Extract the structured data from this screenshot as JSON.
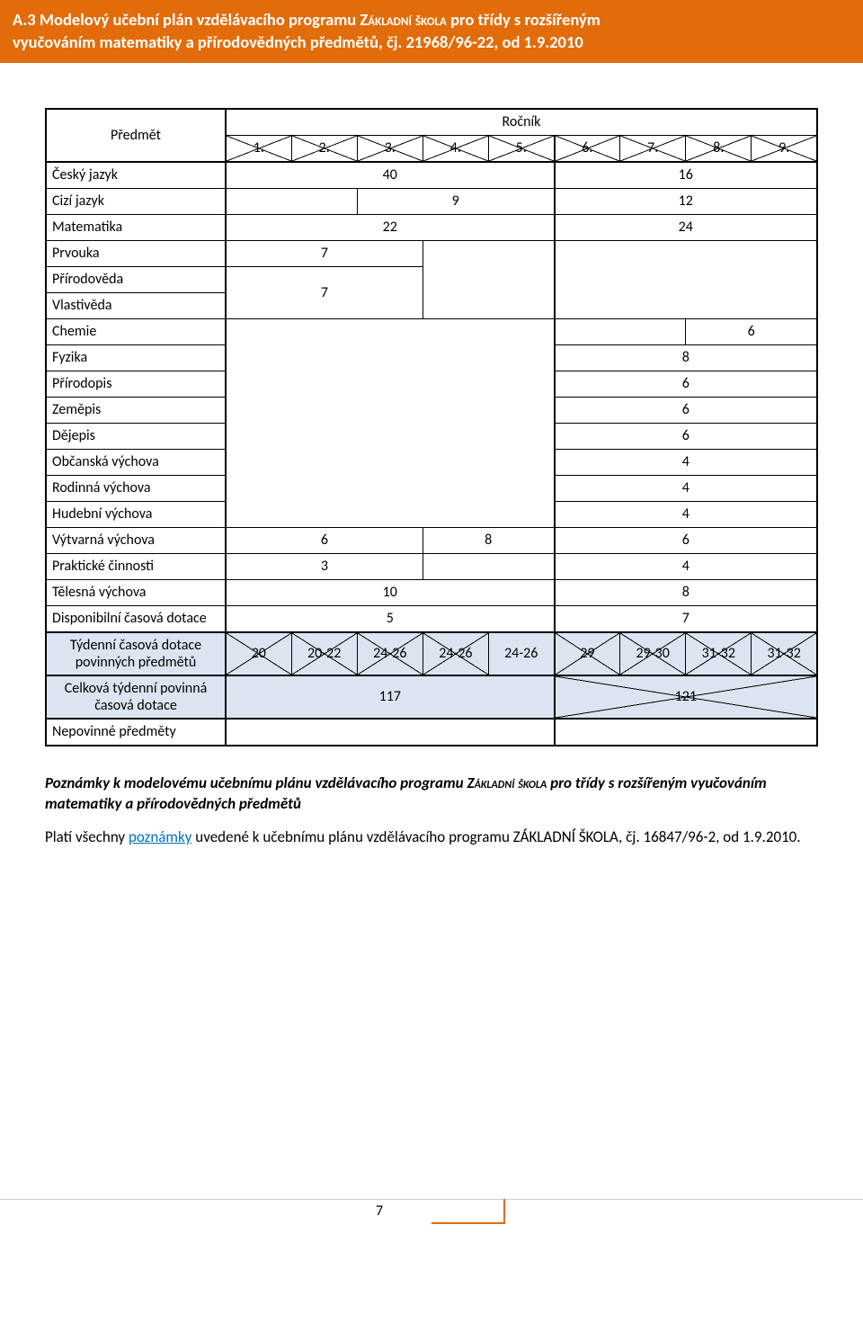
{
  "header": {
    "line1_prefix": "A.3 Modelový učební plán vzdělávacího programu ",
    "line1_caps": "Základní škola",
    "line1_suffix": " pro třídy s rozšířeným",
    "line2": "vyučováním matematiky a přírodovědných předmětů, čj. 21968/96-22, od 1.9.2010"
  },
  "table": {
    "colors": {
      "blue_bg": "#dbe5f1",
      "border": "#000000"
    },
    "subject_header": "Předmět",
    "year_header": "Ročník",
    "years": [
      "1.",
      "2.",
      "3.",
      "4.",
      "5.",
      "6.",
      "7.",
      "8.",
      "9."
    ],
    "rows": [
      {
        "subject": "Český jazyk",
        "a": "40",
        "b": "16",
        "a_span": 5,
        "b_span": 4
      },
      {
        "subject": "Cizí jazyk",
        "a": "",
        "b": "9",
        "c": "12",
        "a_span": 2,
        "b_span": 3,
        "c_span": 4
      },
      {
        "subject": "Matematika",
        "a": "22",
        "b": "24",
        "a_span": 5,
        "b_span": 4
      },
      {
        "subject": "Prvouka",
        "a": "7",
        "a_span": 3
      }
    ],
    "prirodoveda": "Přírodověda",
    "vlastiveda": "Vlastivěda",
    "prirodoveda_val": "7",
    "chemie": {
      "subject": "Chemie",
      "val": "6"
    },
    "fyzika": {
      "subject": "Fyzika",
      "val": "8"
    },
    "prirodopis": {
      "subject": "Přírodopis",
      "val": "6"
    },
    "zemepis": {
      "subject": "Zeměpis",
      "val": "6"
    },
    "dejepis": {
      "subject": "Dějepis",
      "val": "6"
    },
    "obcanska": {
      "subject": "Občanská výchova",
      "val": "4"
    },
    "rodinna": {
      "subject": "Rodinná výchova",
      "val": "4"
    },
    "hudebni": {
      "subject": "Hudební výchova",
      "a": "6",
      "b": "8",
      "c": "4"
    },
    "vytvarna": {
      "subject": "Výtvarná výchova",
      "c": "6"
    },
    "prakticke": {
      "subject": "Praktické činnosti",
      "a": "3",
      "b": "4"
    },
    "telesna": {
      "subject": "Tělesná výchova",
      "a": "10",
      "b": "8"
    },
    "disponibilni": {
      "subject": "Disponibilní časová dotace",
      "a": "5",
      "b": "7"
    },
    "tydenni": {
      "subject_l1": "Týdenní časová dotace",
      "subject_l2": "povinných předmětů",
      "vals": [
        "20",
        "20-22",
        "24-26",
        "24-26",
        "24-26",
        "29",
        "29-30",
        "31-32",
        "31-32"
      ]
    },
    "celkova": {
      "subject_l1": "Celková týdenní povinná",
      "subject_l2": "časová dotace",
      "a": "117",
      "b": "121"
    },
    "nepovinne": {
      "subject": "Nepovinné předměty"
    }
  },
  "notes": {
    "p1_prefix": "Poznámky k modelovému učebnímu plánu vzdělávacího programu ",
    "p1_caps": "Základní škola",
    "p1_suffix": " pro třídy s rozšířeným vyučováním matematiky a přírodovědných předmětů",
    "p2_pre": "Platí všechny ",
    "p2_link": "poznámky",
    "p2_post": " uvedené k učebnímu plánu vzdělávacího programu ZÁKLADNÍ ŠKOLA, čj. 16847/96-2, od 1.9.2010."
  },
  "footer": {
    "page": "7"
  }
}
